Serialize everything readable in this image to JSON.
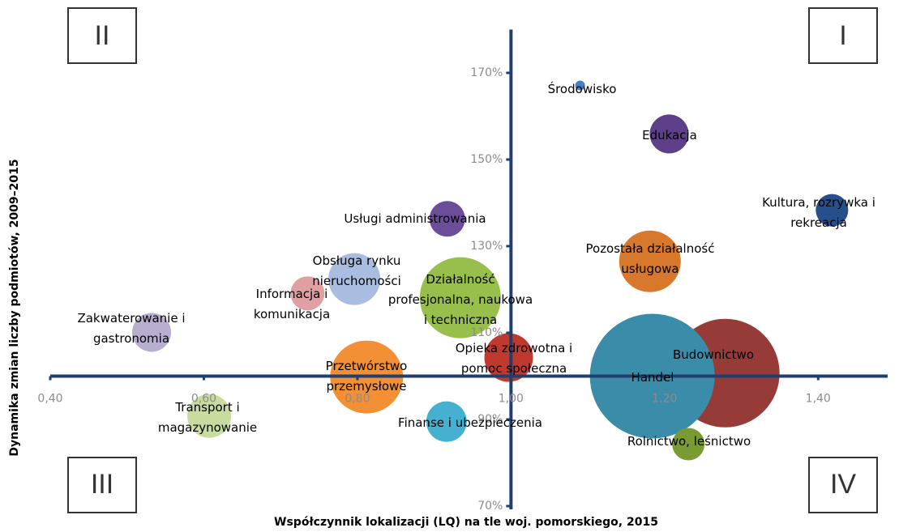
{
  "chart_data": {
    "type": "bubble",
    "x_label": "Współczynnik lokalizacji (LQ) na tle woj. pomorskiego, 2015",
    "y_label": "Dynamika zmian liczby podmiotów, 2009–2015",
    "annotations": [
      "II",
      "I",
      "III",
      "IV"
    ],
    "xlim": [
      0.4,
      1.5
    ],
    "ylim": [
      70,
      180
    ],
    "xticks": [
      {
        "value": 0.4,
        "label": "0,40"
      },
      {
        "value": 0.6,
        "label": "0,60"
      },
      {
        "value": 0.8,
        "label": "0,80"
      },
      {
        "value": 1.0,
        "label": "1,00"
      },
      {
        "value": 1.2,
        "label": "1,20"
      },
      {
        "value": 1.4,
        "label": "1,40"
      }
    ],
    "yticks": [
      {
        "value": 70,
        "label": "70%"
      },
      {
        "value": 90,
        "label": "90%"
      },
      {
        "value": 110,
        "label": "110%"
      },
      {
        "value": 130,
        "label": "130%"
      },
      {
        "value": 150,
        "label": "150%"
      },
      {
        "value": 170,
        "label": "170%"
      }
    ],
    "points": [
      {
        "name": "Środowisko",
        "x": 1.09,
        "y": 167.1,
        "size": 0.36,
        "color": "#4a7fc0"
      },
      {
        "name": "Edukacja",
        "x": 1.206,
        "y": 155.9,
        "size": 5.76,
        "color": "#5e3f8a"
      },
      {
        "name": "Kultura, rozrywka i\nrekreacja",
        "x": 1.418,
        "y": 138.3,
        "size": 4,
        "color": "#264f8c"
      },
      {
        "name": "Usługi administrowania",
        "x": 0.917,
        "y": 136.3,
        "size": 4.84,
        "color": "#6b4d9a"
      },
      {
        "name": "Pozostała działalność\nusługowa",
        "x": 1.181,
        "y": 126.5,
        "size": 14.44,
        "color": "#d7782c"
      },
      {
        "name": "Obsługa rynku\nnieruchomości",
        "x": 0.796,
        "y": 122.4,
        "size": 10.24,
        "color": "#a8bde0"
      },
      {
        "name": "Informacja i\nkomunikacja",
        "x": 0.735,
        "y": 119.1,
        "size": 4.41,
        "color": "#e0a0a3"
      },
      {
        "name": "Działalność\nprofesjonalna, naukowa\ni techniczna",
        "x": 0.934,
        "y": 118.1,
        "size": 25,
        "color": "#98be4c"
      },
      {
        "name": "Zakwaterowanie i\ngastronomia",
        "x": 0.532,
        "y": 110.1,
        "size": 5.76,
        "color": "#b9aed0"
      },
      {
        "name": "Opieka zdrowotna i\npomoc społeczna",
        "x": 0.997,
        "y": 104.3,
        "size": 9,
        "color": "#c0392f"
      },
      {
        "name": "Budownictwo",
        "x": 1.279,
        "y": 100.7,
        "size": 44.89,
        "color": "#963b38"
      },
      {
        "name": "Handel",
        "x": 1.184,
        "y": 100,
        "size": 59.29,
        "color": "#3b8ca8"
      },
      {
        "name": "Przetwórstwo\nprzemysłowe",
        "x": 0.812,
        "y": 99.8,
        "size": 20.25,
        "color": "#f39035"
      },
      {
        "name": "Transport i\nmagazynowanie",
        "x": 0.607,
        "y": 90.8,
        "size": 7.29,
        "color": "#c8dc9f"
      },
      {
        "name": "Finanse i ubezpieczenia",
        "x": 0.916,
        "y": 89.5,
        "size": 6.25,
        "color": "#45b0cf"
      },
      {
        "name": "Rolnictwo, leśnictwo",
        "x": 1.231,
        "y": 84.3,
        "size": 4,
        "color": "#7a9a34"
      }
    ]
  }
}
